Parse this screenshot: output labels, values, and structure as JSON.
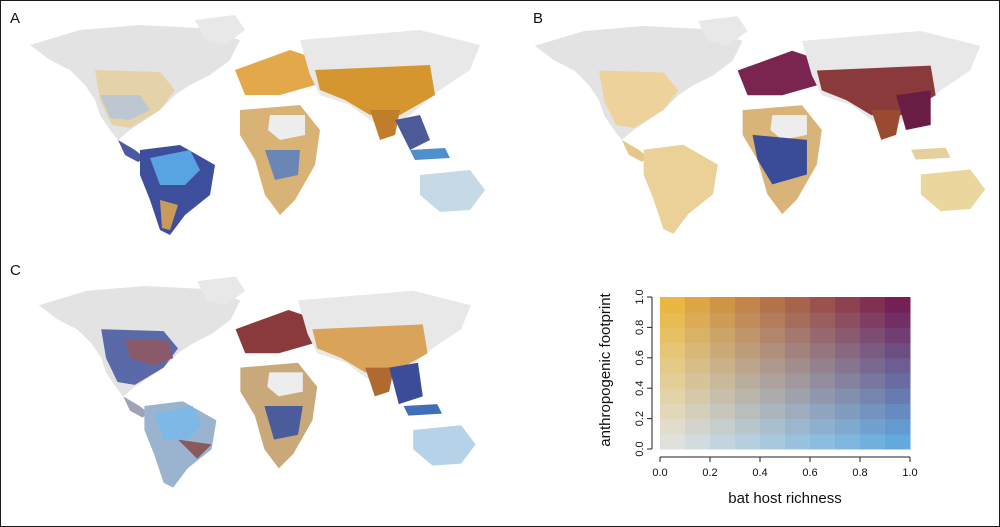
{
  "panels": [
    {
      "label": "A"
    },
    {
      "label": "B"
    },
    {
      "label": "C"
    }
  ],
  "legend": {
    "y_label": "anthropogenic footprint",
    "x_label": "bat host richness",
    "x_ticks": [
      "0.0",
      "0.2",
      "0.4",
      "0.6",
      "0.8",
      "1.0"
    ],
    "y_ticks": [
      "0.0",
      "0.2",
      "0.4",
      "0.6",
      "0.8",
      "1.0"
    ],
    "corner_colors": {
      "low_low": "#e6e6e6",
      "high_footprint_low_richness": "#f0bd38",
      "low_footprint_high_richness": "#5aaee6",
      "high_high": "#6e0f4e"
    }
  }
}
